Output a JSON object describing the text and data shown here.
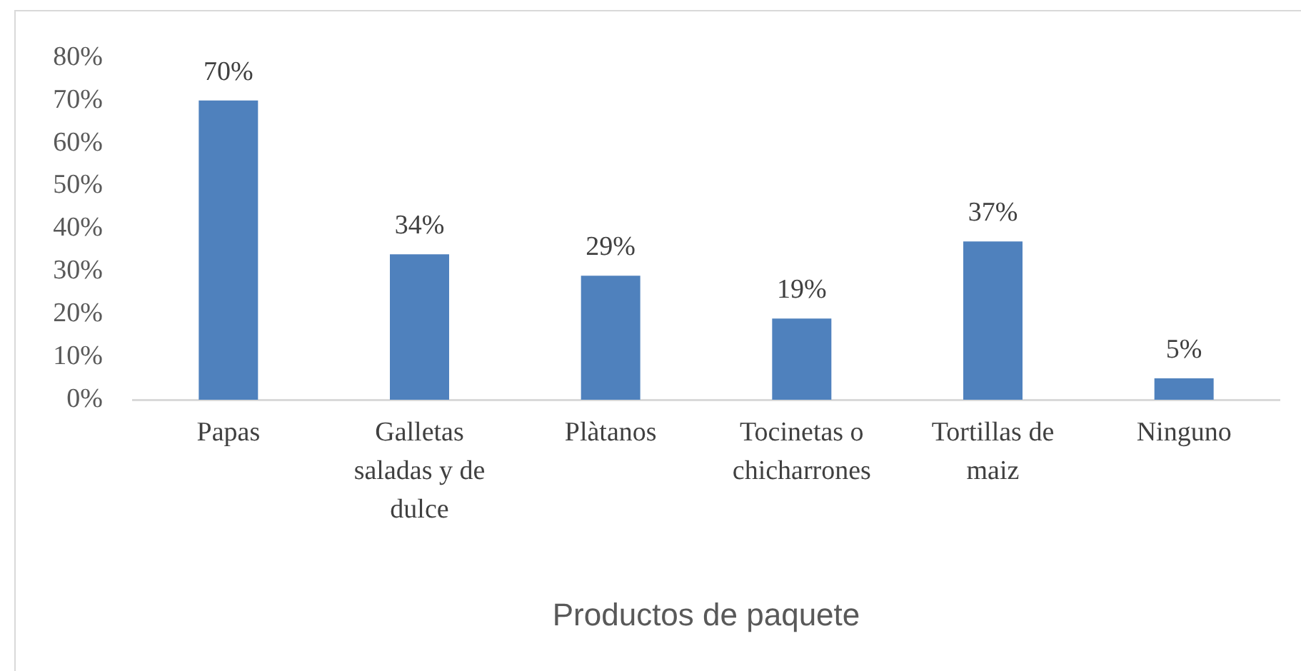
{
  "chart_data": {
    "type": "bar",
    "xlabel": "Productos de paquete",
    "categories": [
      "Papas",
      "Galletas saladas y de dulce",
      "Plàtanos",
      "Tocinetas o chicharrones",
      "Tortillas de maiz",
      "Ninguno"
    ],
    "values": [
      70,
      34,
      29,
      19,
      37,
      5
    ],
    "value_labels": [
      "70%",
      "34%",
      "29%",
      "19%",
      "37%",
      "5%"
    ],
    "color": "#4f81bd",
    "ylim": [
      0,
      80
    ],
    "yticks": [
      {
        "value": 0,
        "label": "0%"
      },
      {
        "value": 10,
        "label": "10%"
      },
      {
        "value": 20,
        "label": "20%"
      },
      {
        "value": 30,
        "label": "30%"
      },
      {
        "value": 40,
        "label": "40%"
      },
      {
        "value": 50,
        "label": "50%"
      },
      {
        "value": 60,
        "label": "60%"
      },
      {
        "value": 70,
        "label": "70%"
      },
      {
        "value": 80,
        "label": "80%"
      }
    ]
  }
}
